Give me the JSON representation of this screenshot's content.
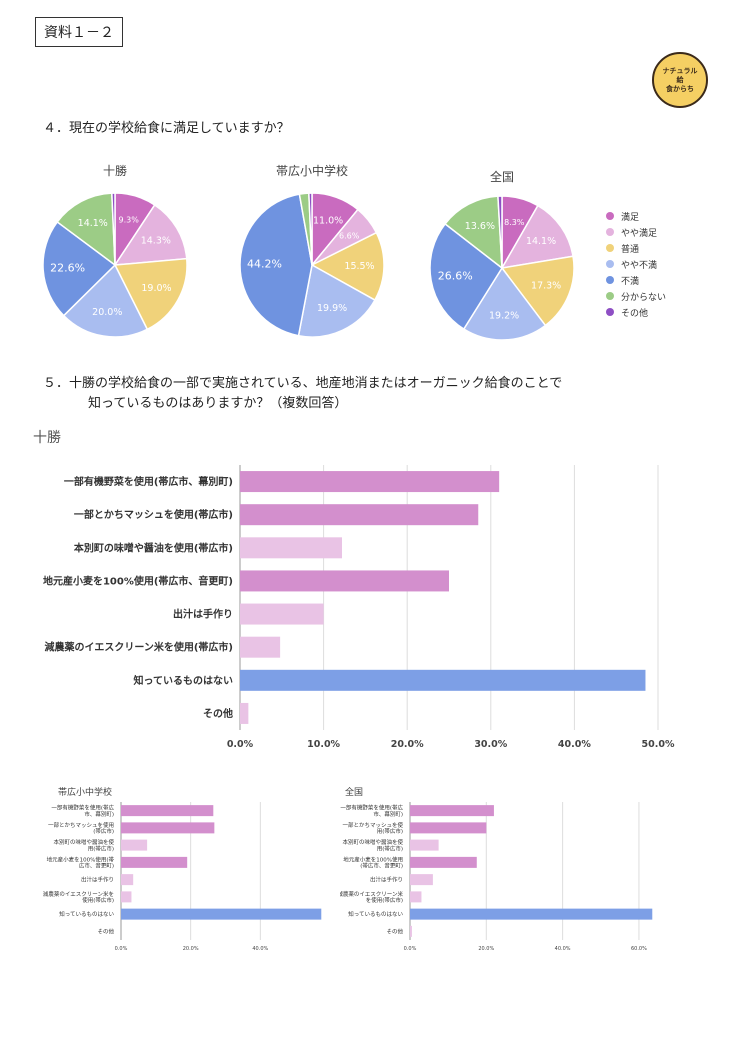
{
  "doc_tag": "資料１－２",
  "logo": {
    "line1": "ナチュラル",
    "line2": "給",
    "line3": "食からち"
  },
  "question4": "４．現在の学校給食に満足していますか？",
  "question5_line1": "５．十勝の学校給食の一部で実施されている、地産地消またはオーガニック給食のことで",
  "question5_line2": "知っているものはありますか？（複数回答）",
  "legend": {
    "items": [
      "満足",
      "やや満足",
      "普通",
      "やや不満",
      "不満",
      "分からない",
      "その他"
    ],
    "colors": [
      "#c96bbf",
      "#e4b3de",
      "#f0d27a",
      "#a9bdf0",
      "#6f93e0",
      "#9ccc86",
      "#8e4fc4"
    ]
  },
  "chart_data": [
    {
      "type": "pie",
      "title": "十勝",
      "categories": [
        "満足",
        "やや満足",
        "普通",
        "やや不満",
        "不満",
        "分からない",
        "その他"
      ],
      "values": [
        9.3,
        14.3,
        19.0,
        20.0,
        22.6,
        14.1,
        0.7
      ],
      "labels": [
        "9.3%",
        "14.3%",
        "19.0%",
        "20.0%",
        "22.6%",
        "14.1%",
        ""
      ]
    },
    {
      "type": "pie",
      "title": "帯広小中学校",
      "categories": [
        "満足",
        "やや満足",
        "普通",
        "やや不満",
        "不満",
        "分からない",
        "その他"
      ],
      "values": [
        11.0,
        6.6,
        15.5,
        19.9,
        44.2,
        2.1,
        0.7
      ],
      "labels": [
        "11.0%",
        "6.6%",
        "15.5%",
        "19.9%",
        "44.2%",
        "",
        ""
      ]
    },
    {
      "type": "pie",
      "title": "全国",
      "categories": [
        "満足",
        "やや満足",
        "普通",
        "やや不満",
        "不満",
        "分からない",
        "その他"
      ],
      "values": [
        8.3,
        14.1,
        17.3,
        19.2,
        26.6,
        13.6,
        0.9
      ],
      "labels": [
        "8.3%",
        "14.1%",
        "17.3%",
        "19.2%",
        "26.6%",
        "13.6%",
        ""
      ]
    },
    {
      "type": "bar",
      "orientation": "horizontal",
      "title": "十勝",
      "categories": [
        "一部有機野菜を使用(帯広市、幕別町)",
        "一部とかちマッシュを使用(帯広市)",
        "本別町の味噌や醤油を使用(帯広市)",
        "地元産小麦を100%使用(帯広市、音更町)",
        "出汁は手作り",
        "減農薬のイエスクリーン米を使用(帯広市)",
        "知っているものはない",
        "その他"
      ],
      "values": [
        31.0,
        28.5,
        12.2,
        25.0,
        10.0,
        4.8,
        48.5,
        1.0
      ],
      "colors": [
        "#d38fcd",
        "#d38fcd",
        "#e9c3e5",
        "#d38fcd",
        "#e9c3e5",
        "#e9c3e5",
        "#7d9fe6",
        "#e9c3e5"
      ],
      "xlim": [
        0,
        50
      ],
      "ticks": [
        "0.0%",
        "10.0%",
        "20.0%",
        "30.0%",
        "40.0%",
        "50.0%"
      ]
    },
    {
      "type": "bar",
      "orientation": "horizontal",
      "title": "帯広小中学校",
      "categories": [
        "一部有機野菜を使用(帯広市、幕別町)",
        "一部とかちマッシュを使用(帯広市)",
        "本別町の味噌や醤油を使用(帯広市)",
        "地元産小麦を100%使用(帯広市、音更町)",
        "出汁は手作り",
        "減農薬のイエスクリーン米を使用(帯広市)",
        "知っているものはない",
        "その他"
      ],
      "label_lines": [
        [
          "一部有機野菜を使用(帯広",
          "市、幕別町)"
        ],
        [
          "一部とかちマッシュを使用",
          "(帯広市)"
        ],
        [
          "本別町の味噌や醤油を使",
          "用(帯広市)"
        ],
        [
          "地元産小麦を100%使用(帯",
          "広市、音更町)"
        ],
        [
          "出汁は手作り"
        ],
        [
          "減農薬のイエスクリーン米を",
          "使用(帯広市)"
        ],
        [
          "知っているものはない"
        ],
        [
          "その他"
        ]
      ],
      "values": [
        26.5,
        26.8,
        7.5,
        19.0,
        3.5,
        3.0,
        57.5,
        0.0
      ],
      "colors": [
        "#d38fcd",
        "#d38fcd",
        "#e9c3e5",
        "#d38fcd",
        "#e9c3e5",
        "#e9c3e5",
        "#7d9fe6",
        "#e9c3e5"
      ],
      "xlim": [
        0,
        60
      ],
      "ticks": [
        "0.0%",
        "20.0%",
        "40.0%"
      ]
    },
    {
      "type": "bar",
      "orientation": "horizontal",
      "title": "全国",
      "categories": [
        "一部有機野菜を使用(帯広市、幕別町)",
        "一部とかちマッシュを使用(帯広市)",
        "本別町の味噌や醤油を使用(帯広市)",
        "地元産小麦を100%使用(帯広市、音更町)",
        "出汁は手作り",
        "減農薬のイエスクリーン米を使用(帯広市)",
        "知っているものはない",
        "その他"
      ],
      "label_lines": [
        [
          "一部有機野菜を使用(帯広",
          "市、幕別町)"
        ],
        [
          "一部とかちマッシュを使",
          "用(帯広市)"
        ],
        [
          "本別町の味噌や醤油を使",
          "用(帯広市)"
        ],
        [
          "地元産小麦を100%使用",
          "(帯広市、音更町)"
        ],
        [
          "出汁は手作り"
        ],
        [
          "減農薬のイエスクリーン米",
          "を使用(帯広市)"
        ],
        [
          "知っているものはない"
        ],
        [
          "その他"
        ]
      ],
      "values": [
        22.0,
        20.0,
        7.5,
        17.5,
        6.0,
        3.0,
        63.5,
        0.5
      ],
      "colors": [
        "#d38fcd",
        "#d38fcd",
        "#e9c3e5",
        "#d38fcd",
        "#e9c3e5",
        "#e9c3e5",
        "#7d9fe6",
        "#e9c3e5"
      ],
      "xlim": [
        0,
        65
      ],
      "ticks": [
        "0.0%",
        "20.0%",
        "40.0%",
        "60.0%"
      ]
    }
  ]
}
